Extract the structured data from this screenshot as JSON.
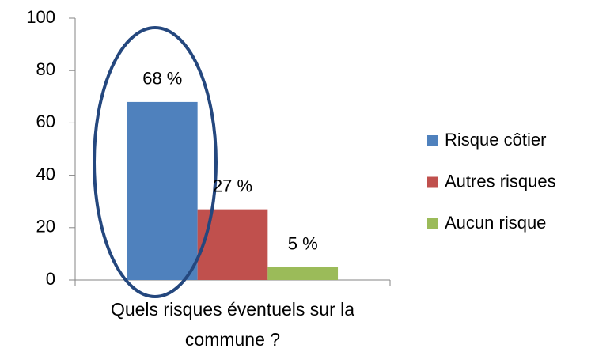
{
  "chart_data": {
    "type": "bar",
    "categories": [
      "Quels risques éventuels sur la commune ?"
    ],
    "series": [
      {
        "name": "Risque côtier",
        "color": "#4f81bd",
        "values": [
          68
        ],
        "value_labels": [
          "68 %"
        ]
      },
      {
        "name": "Autres risques",
        "color": "#c0504d",
        "values": [
          27
        ],
        "value_labels": [
          "27 %"
        ]
      },
      {
        "name": "Aucun risque",
        "color": "#9bbb59",
        "values": [
          5
        ],
        "value_labels": [
          "5 %"
        ]
      }
    ],
    "ylim": [
      0,
      100
    ],
    "yticks": [
      0,
      20,
      40,
      60,
      80,
      100
    ],
    "legend": "right"
  }
}
